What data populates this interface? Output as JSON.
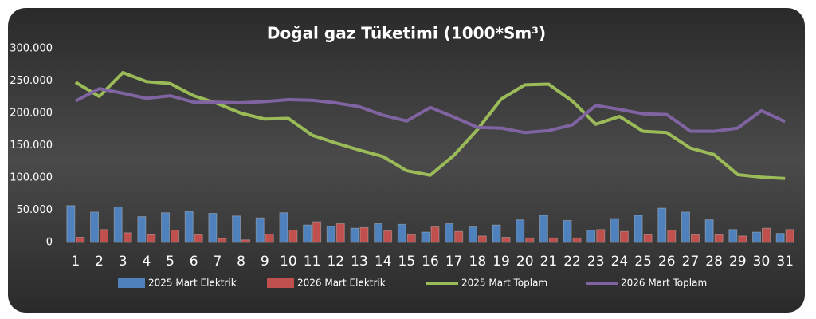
{
  "chart_data": {
    "type": "bar-line",
    "title": "Doğal gaz Tüketimi (1000*Sm³)",
    "categories": [
      "1",
      "2",
      "3",
      "4",
      "5",
      "6",
      "7",
      "8",
      "9",
      "10",
      "11",
      "12",
      "13",
      "14",
      "15",
      "16",
      "17",
      "18",
      "19",
      "20",
      "21",
      "22",
      "23",
      "24",
      "25",
      "26",
      "27",
      "28",
      "29",
      "30",
      "31"
    ],
    "series": [
      {
        "name": "2025 Mart Elektrik",
        "type": "bar",
        "color": "#4f81bd",
        "values": [
          57000,
          47000,
          55000,
          40000,
          46000,
          48000,
          45000,
          41000,
          38000,
          46000,
          27000,
          25000,
          22000,
          29000,
          28000,
          16000,
          29000,
          24000,
          27000,
          35000,
          42000,
          34000,
          19000,
          37000,
          42000,
          53000,
          47000,
          35000,
          20000,
          16000,
          14000
        ]
      },
      {
        "name": "2026 Mart Elektrik",
        "type": "bar",
        "color": "#c0504d",
        "values": [
          8000,
          20000,
          15000,
          12000,
          19000,
          12000,
          6000,
          4000,
          13000,
          19000,
          32000,
          29000,
          23000,
          18000,
          12000,
          24000,
          17000,
          10000,
          8000,
          7000,
          7000,
          7000,
          20000,
          17000,
          12000,
          19000,
          12000,
          12000,
          10000,
          22000,
          20000
        ]
      },
      {
        "name": "2025 Mart Toplam",
        "type": "line",
        "color": "#9bbb59",
        "values": [
          248000,
          226000,
          263000,
          249000,
          246000,
          227000,
          215000,
          200000,
          191000,
          192000,
          166000,
          154000,
          143000,
          133000,
          111000,
          104000,
          135000,
          175000,
          222000,
          244000,
          245000,
          219000,
          183000,
          195000,
          172000,
          170000,
          146000,
          136000,
          105000,
          101000,
          99000
        ]
      },
      {
        "name": "2026 Mart Toplam",
        "type": "line",
        "color": "#8064a2",
        "values": [
          219000,
          238000,
          231000,
          223000,
          227000,
          217000,
          217000,
          216000,
          218000,
          221000,
          220000,
          216000,
          210000,
          197000,
          188000,
          209000,
          194000,
          178000,
          177000,
          170000,
          173000,
          182000,
          212000,
          206000,
          199000,
          198000,
          172000,
          172000,
          177000,
          204000,
          187000
        ]
      }
    ],
    "ylim": [
      0,
      300000
    ],
    "yticks": [
      0,
      {
        "value": 50000,
        "label": "50.000"
      },
      {
        "value": 100000,
        "label": "100.000"
      },
      {
        "value": 150000,
        "label": "150.000"
      },
      {
        "value": 200000,
        "label": "200.000"
      },
      {
        "value": 250000,
        "label": "250.000"
      },
      {
        "value": 300000,
        "label": "300.000"
      }
    ],
    "grid": false,
    "legend": "bottom"
  }
}
